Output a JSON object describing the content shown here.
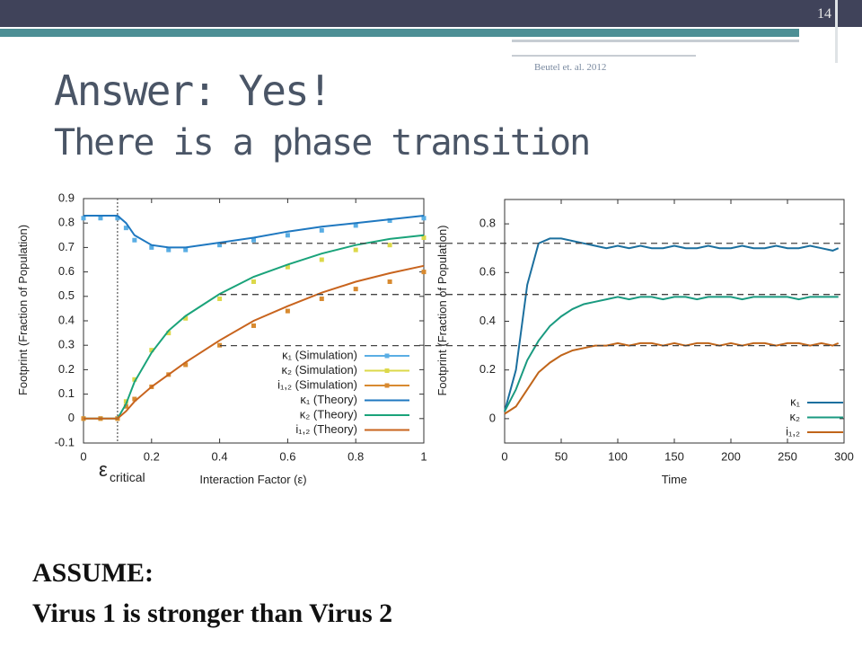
{
  "slide": {
    "number": "14",
    "title": "Answer: Yes!",
    "subtitle": "There is a phase transition",
    "citation": "Beutel et. al. 2012",
    "assume_heading": "ASSUME:",
    "assume_text": "Virus 1 is stronger than Virus 2"
  },
  "chart_data": [
    {
      "type": "line",
      "xlabel": "Interaction Factor (ε)",
      "ylabel": "Footprint (Fraction of Population)",
      "annotation": "ε",
      "annotation_subscript": "critical",
      "critical_x": 0.1,
      "xlim": [
        0,
        1
      ],
      "ylim": [
        -0.1,
        0.9
      ],
      "xticks": [
        0,
        0.2,
        0.4,
        0.6,
        0.8,
        1
      ],
      "yticks": [
        -0.1,
        0,
        0.1,
        0.2,
        0.3,
        0.4,
        0.5,
        0.6,
        0.7,
        0.8,
        0.9
      ],
      "legend": "lower right",
      "x": [
        0,
        0.05,
        0.1,
        0.125,
        0.15,
        0.2,
        0.25,
        0.3,
        0.4,
        0.5,
        0.6,
        0.7,
        0.8,
        0.9,
        1
      ],
      "series": [
        {
          "name": "κ₁ (Simulation)",
          "color": "#5aaee4",
          "style": "points",
          "values": [
            0.82,
            0.82,
            0.82,
            0.78,
            0.73,
            0.7,
            0.69,
            0.69,
            0.71,
            0.73,
            0.75,
            0.77,
            0.79,
            0.81,
            0.82
          ]
        },
        {
          "name": "κ₂ (Simulation)",
          "color": "#dcd84a",
          "style": "points",
          "values": [
            0,
            0,
            0,
            0.07,
            0.16,
            0.28,
            0.35,
            0.41,
            0.49,
            0.56,
            0.62,
            0.65,
            0.69,
            0.71,
            0.74
          ]
        },
        {
          "name": "i₁,₂ (Simulation)",
          "color": "#d88a30",
          "style": "points",
          "values": [
            0,
            0,
            0,
            0.05,
            0.08,
            0.13,
            0.18,
            0.22,
            0.3,
            0.38,
            0.44,
            0.49,
            0.53,
            0.56,
            0.6
          ]
        },
        {
          "name": "κ₁ (Theory)",
          "color": "#1f78c0",
          "style": "line",
          "values": [
            0.83,
            0.83,
            0.83,
            0.8,
            0.75,
            0.71,
            0.7,
            0.7,
            0.72,
            0.74,
            0.765,
            0.785,
            0.8,
            0.815,
            0.83
          ]
        },
        {
          "name": "κ₂ (Theory)",
          "color": "#1aa37a",
          "style": "line",
          "values": [
            0,
            0,
            0,
            0.06,
            0.15,
            0.27,
            0.36,
            0.42,
            0.51,
            0.58,
            0.63,
            0.675,
            0.71,
            0.735,
            0.75
          ]
        },
        {
          "name": "i₁,₂ (Theory)",
          "color": "#c8641e",
          "style": "line",
          "values": [
            0,
            0,
            0,
            0.03,
            0.07,
            0.13,
            0.18,
            0.23,
            0.32,
            0.4,
            0.46,
            0.515,
            0.56,
            0.595,
            0.625
          ]
        }
      ]
    },
    {
      "type": "line",
      "xlabel": "Time",
      "ylabel": "Footprint (Fraction of Population)",
      "xlim": [
        0,
        300
      ],
      "ylim": [
        -0.1,
        0.9
      ],
      "xticks": [
        0,
        50,
        100,
        150,
        200,
        250,
        300
      ],
      "yticks": [
        0,
        0.2,
        0.4,
        0.6,
        0.8
      ],
      "legend": "lower right",
      "reference_lines": [
        0.72,
        0.51,
        0.3
      ],
      "x": [
        0,
        10,
        20,
        30,
        40,
        50,
        60,
        70,
        80,
        90,
        100,
        110,
        120,
        130,
        140,
        150,
        160,
        170,
        180,
        190,
        200,
        210,
        220,
        230,
        240,
        250,
        260,
        270,
        280,
        290,
        295
      ],
      "series": [
        {
          "name": "κ₁",
          "color": "#1b6f9e",
          "style": "line",
          "values": [
            0.03,
            0.2,
            0.55,
            0.72,
            0.74,
            0.74,
            0.73,
            0.72,
            0.71,
            0.7,
            0.71,
            0.7,
            0.71,
            0.7,
            0.7,
            0.71,
            0.7,
            0.7,
            0.71,
            0.7,
            0.7,
            0.71,
            0.7,
            0.7,
            0.71,
            0.7,
            0.7,
            0.71,
            0.7,
            0.69,
            0.7
          ]
        },
        {
          "name": "κ₂",
          "color": "#1a9a80",
          "style": "line",
          "values": [
            0.03,
            0.12,
            0.24,
            0.32,
            0.38,
            0.42,
            0.45,
            0.47,
            0.48,
            0.49,
            0.5,
            0.49,
            0.5,
            0.5,
            0.49,
            0.5,
            0.5,
            0.49,
            0.5,
            0.5,
            0.5,
            0.49,
            0.5,
            0.5,
            0.5,
            0.5,
            0.49,
            0.5,
            0.5,
            0.5,
            0.5
          ]
        },
        {
          "name": "i₁,₂",
          "color": "#c0651a",
          "style": "line",
          "values": [
            0.02,
            0.05,
            0.12,
            0.19,
            0.23,
            0.26,
            0.28,
            0.29,
            0.3,
            0.3,
            0.31,
            0.3,
            0.31,
            0.31,
            0.3,
            0.31,
            0.3,
            0.31,
            0.31,
            0.3,
            0.31,
            0.3,
            0.31,
            0.31,
            0.3,
            0.31,
            0.31,
            0.3,
            0.31,
            0.3,
            0.31
          ]
        }
      ]
    }
  ]
}
